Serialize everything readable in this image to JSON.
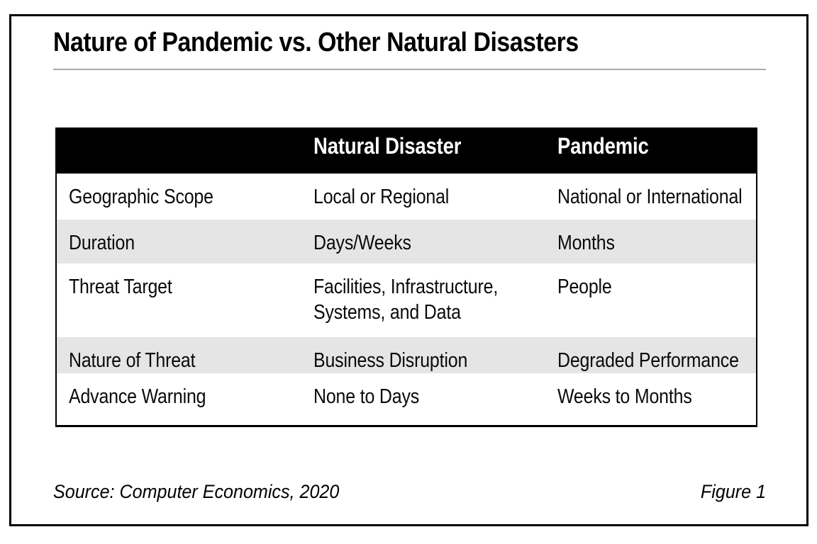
{
  "chart_data": {
    "type": "table",
    "title": "Nature of Pandemic vs. Other Natural Disasters",
    "columns": [
      "",
      "Natural Disaster",
      "Pandemic"
    ],
    "rows": [
      [
        "Geographic Scope",
        "Local or Regional",
        "National or International"
      ],
      [
        "Duration",
        "Days/Weeks",
        "Months"
      ],
      [
        "Threat Target",
        "Facilities, Infrastructure, Systems, and Data",
        "People"
      ],
      [
        "Nature of Threat",
        "Business Disruption",
        "Degraded Performance"
      ],
      [
        "Advance Warning",
        "None to Days",
        "Weeks to Months"
      ]
    ],
    "source": "Source: Computer Economics, 2020",
    "figure_label": "Figure 1",
    "layout": {
      "legend_position": "none",
      "grid": "off",
      "alt_shaded_rows": [
        2,
        4
      ],
      "header_bg": "#000000",
      "header_text_color": "#ffffff",
      "alt_row_bg": "#e5e5e5",
      "title_rule_color": "#ababab",
      "frame_border_color": "#000000"
    }
  }
}
